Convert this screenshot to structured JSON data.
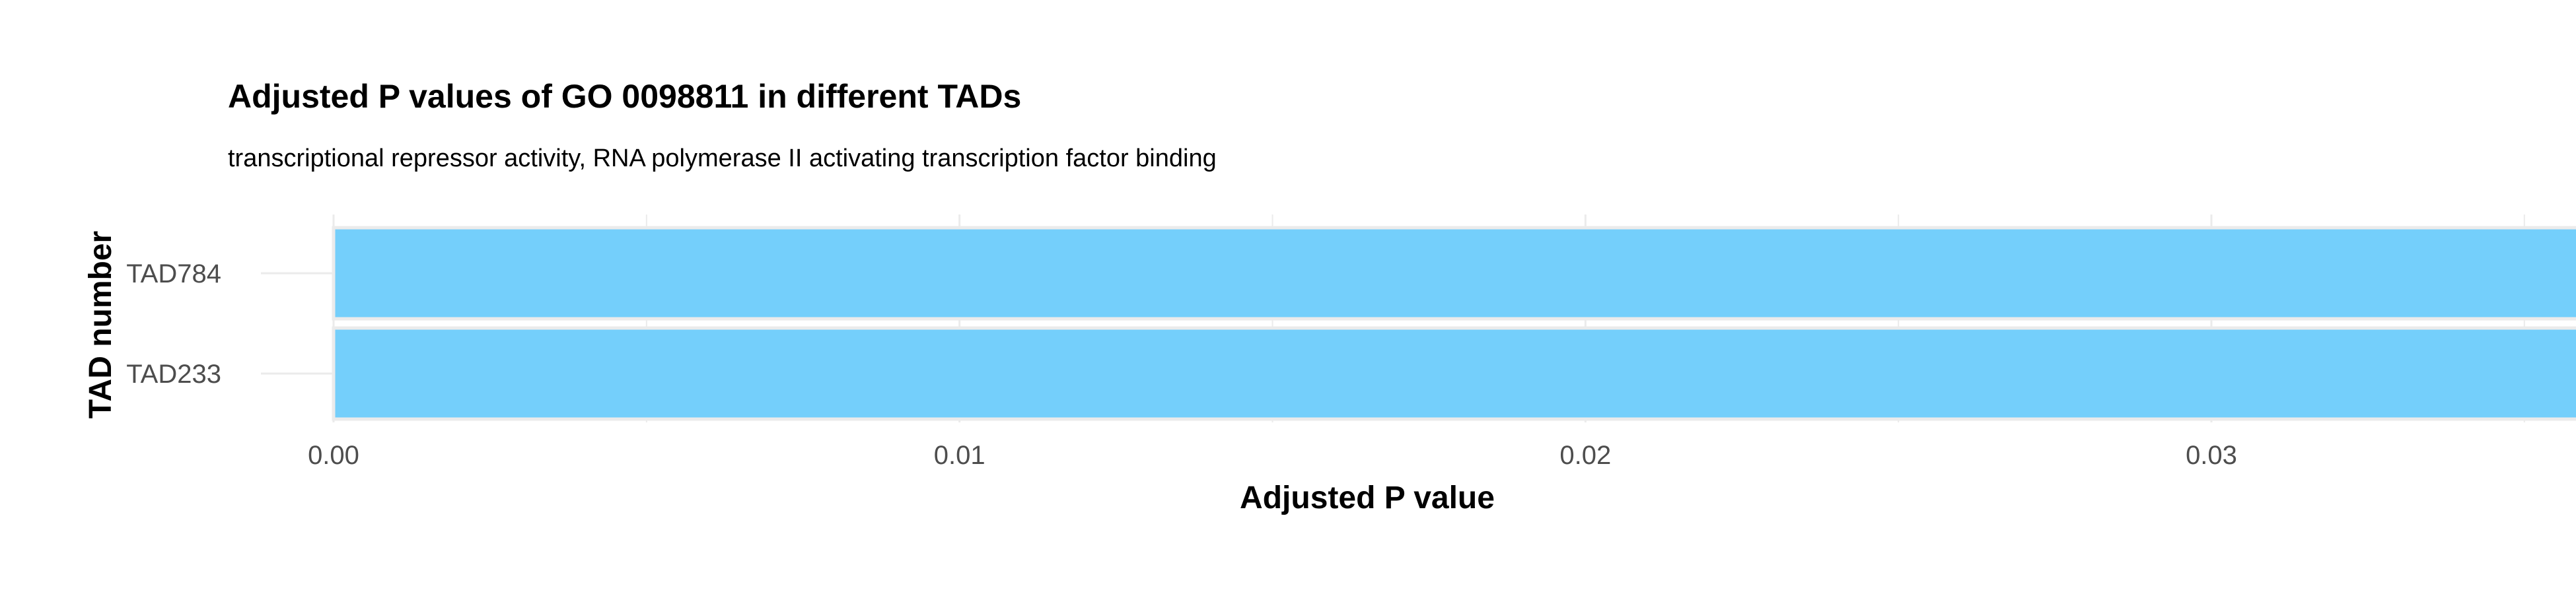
{
  "chart_data": {
    "type": "bar",
    "orientation": "horizontal",
    "title": "Adjusted P values of GO 0098811 in different TADs",
    "subtitle": "transcriptional repressor activity, RNA polymerase II activating transcription factor binding",
    "xlabel": "Adjusted P value",
    "ylabel": "TAD number",
    "categories": [
      "TAD784",
      "TAD233"
    ],
    "values": [
      0.0371,
      0.0371
    ],
    "xlim": [
      0,
      0.039
    ],
    "xticks": [
      0.0,
      0.01,
      0.02,
      0.03
    ],
    "xtick_labels": [
      "0.00",
      "0.01",
      "0.02",
      "0.03"
    ],
    "minor_xticks": [
      0.005,
      0.015,
      0.025,
      0.035
    ],
    "grid": true,
    "bar_color": "#74cffb",
    "bar_outline_color": "#ebebeb"
  }
}
